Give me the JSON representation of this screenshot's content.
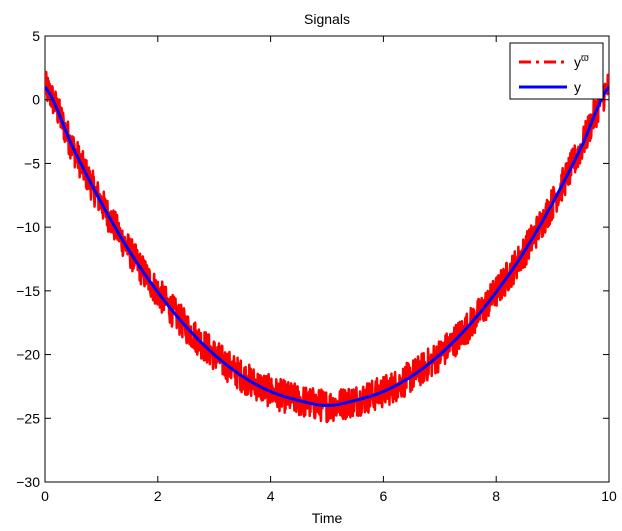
{
  "chart_data": {
    "type": "line",
    "title": "Signals",
    "xlabel": "Time",
    "ylabel": "",
    "xlim": [
      0,
      10
    ],
    "ylim": [
      -30,
      5
    ],
    "xticks": [
      0,
      2,
      4,
      6,
      8,
      10
    ],
    "xtick_labels": [
      "0",
      "2",
      "4",
      "6",
      "8",
      "10"
    ],
    "yticks": [
      -30,
      -25,
      -20,
      -15,
      -10,
      -5,
      0,
      5
    ],
    "ytick_labels": [
      "−30",
      "−25",
      "−20",
      "−15",
      "−10",
      "−5",
      "0",
      "5"
    ],
    "grid": false,
    "legend_position": "top-right",
    "series": [
      {
        "name": "y",
        "superscript": "ϖ",
        "color": "#ff0000",
        "style": "dash-dot",
        "noise_band": 1.3,
        "x": [
          0,
          0.5,
          1,
          1.5,
          2,
          2.5,
          3,
          3.5,
          4,
          4.5,
          5,
          5.5,
          6,
          6.5,
          7,
          7.5,
          8,
          8.5,
          9,
          9.5,
          10
        ],
        "y": [
          1,
          -3.8,
          -8.1,
          -11.9,
          -15.1,
          -17.8,
          -20.0,
          -21.7,
          -22.9,
          -23.6,
          -24.0,
          -23.6,
          -22.9,
          -21.7,
          -20.0,
          -17.8,
          -15.1,
          -11.9,
          -8.1,
          -3.8,
          1
        ]
      },
      {
        "name": "y",
        "superscript": "",
        "color": "#0000ff",
        "style": "solid",
        "x": [
          0,
          0.5,
          1,
          1.5,
          2,
          2.5,
          3,
          3.5,
          4,
          4.5,
          5,
          5.5,
          6,
          6.5,
          7,
          7.5,
          8,
          8.5,
          9,
          9.5,
          10
        ],
        "y": [
          1,
          -3.8,
          -8.1,
          -11.9,
          -15.1,
          -17.8,
          -20.0,
          -21.7,
          -22.9,
          -23.6,
          -24.0,
          -23.6,
          -22.9,
          -21.7,
          -20.0,
          -17.8,
          -15.1,
          -11.9,
          -8.1,
          -3.8,
          1
        ]
      }
    ]
  }
}
